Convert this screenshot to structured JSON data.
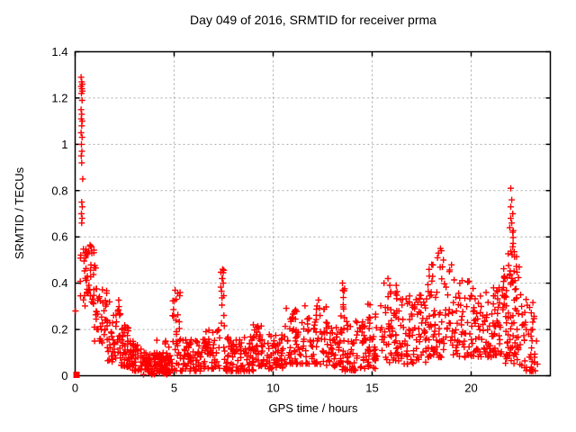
{
  "chart_data": {
    "type": "scatter",
    "title": "Day 049 of 2016, SRMTID for receiver prma",
    "xlabel": "GPS time / hours",
    "ylabel": "SRMTID / TECUs",
    "xlim": [
      0,
      24
    ],
    "ylim": [
      0,
      1.4
    ],
    "xticks": [
      {
        "v": 0,
        "label": "0"
      },
      {
        "v": 5,
        "label": "5"
      },
      {
        "v": 10,
        "label": "10"
      },
      {
        "v": 15,
        "label": "15"
      },
      {
        "v": 20,
        "label": "20"
      }
    ],
    "yticks": [
      {
        "v": 0,
        "label": "0"
      },
      {
        "v": 0.2,
        "label": "0.2"
      },
      {
        "v": 0.4,
        "label": "0.4"
      },
      {
        "v": 0.6,
        "label": "0.6"
      },
      {
        "v": 0.8,
        "label": "0.8"
      },
      {
        "v": 1.0,
        "label": "1"
      },
      {
        "v": 1.2,
        "label": "1.2"
      },
      {
        "v": 1.4,
        "label": "1.4"
      }
    ],
    "grid": true,
    "legend": "none",
    "marker": {
      "shape": "plus",
      "color": "#ff0000",
      "size": 7
    },
    "colors": {
      "fg": "#000000",
      "grid": "#aaaaaa",
      "bg": "#ffffff"
    },
    "seed": 49,
    "origin_point": [
      0.07,
      0.004
    ],
    "feature_points": [
      [
        0.02,
        0.28
      ],
      [
        0.3,
        1.29
      ],
      [
        0.33,
        1.27
      ],
      [
        0.36,
        1.26
      ],
      [
        0.3,
        1.25
      ],
      [
        0.34,
        1.24
      ],
      [
        0.37,
        1.23
      ],
      [
        0.32,
        1.22
      ],
      [
        0.35,
        1.19
      ],
      [
        0.3,
        1.15
      ],
      [
        0.33,
        1.13
      ],
      [
        0.31,
        1.11
      ],
      [
        0.36,
        1.1
      ],
      [
        0.33,
        1.08
      ],
      [
        0.3,
        1.05
      ],
      [
        0.35,
        1.03
      ],
      [
        0.32,
        1.0
      ],
      [
        0.34,
        0.97
      ],
      [
        0.31,
        0.95
      ],
      [
        0.33,
        0.92
      ],
      [
        0.38,
        0.85
      ],
      [
        0.33,
        0.75
      ],
      [
        0.36,
        0.73
      ],
      [
        0.32,
        0.7
      ],
      [
        0.35,
        0.68
      ],
      [
        0.33,
        0.66
      ],
      [
        5.05,
        0.37
      ],
      [
        5.3,
        0.36
      ],
      [
        5.1,
        0.33
      ],
      [
        7.45,
        0.46
      ],
      [
        7.42,
        0.42
      ],
      [
        7.48,
        0.4
      ],
      [
        9.0,
        0.22
      ],
      [
        11.1,
        0.28
      ],
      [
        11.13,
        0.285
      ],
      [
        11.07,
        0.275
      ],
      [
        13.5,
        0.4
      ],
      [
        13.52,
        0.37
      ],
      [
        15.8,
        0.42
      ],
      [
        15.6,
        0.4
      ],
      [
        18.45,
        0.55
      ],
      [
        18.5,
        0.54
      ],
      [
        18.35,
        0.53
      ],
      [
        18.3,
        0.51
      ],
      [
        18.6,
        0.5
      ],
      [
        18.55,
        0.47
      ],
      [
        18.9,
        0.45
      ],
      [
        22.0,
        0.81
      ],
      [
        22.05,
        0.76
      ],
      [
        22.0,
        0.73
      ],
      [
        22.1,
        0.7
      ],
      [
        22.0,
        0.68
      ],
      [
        22.05,
        0.66
      ],
      [
        21.95,
        0.64
      ],
      [
        22.1,
        0.62
      ],
      [
        22.5,
        0.35
      ],
      [
        22.55,
        0.3
      ],
      [
        22.7,
        0.22
      ],
      [
        22.9,
        0.18
      ],
      [
        23.05,
        0.12
      ],
      [
        23.1,
        0.2
      ],
      [
        23.2,
        0.08
      ],
      [
        23.3,
        0.15
      ],
      [
        23.35,
        0.05
      ]
    ],
    "clusters": [
      {
        "x0": 0.25,
        "x1": 1.05,
        "ylo": 0.3,
        "yhi": 0.57,
        "n": 48,
        "bias": 1.0
      },
      {
        "x0": 0.9,
        "x1": 1.6,
        "ylo": 0.14,
        "yhi": 0.38,
        "n": 40,
        "bias": 1.2
      },
      {
        "x0": 1.6,
        "x1": 2.3,
        "ylo": 0.06,
        "yhi": 0.34,
        "n": 48,
        "bias": 1.4
      },
      {
        "x0": 2.3,
        "x1": 2.7,
        "ylo": 0.04,
        "yhi": 0.22,
        "n": 32,
        "bias": 1.3
      },
      {
        "x0": 2.6,
        "x1": 3.4,
        "ylo": 0.02,
        "yhi": 0.15,
        "n": 48,
        "bias": 1.3
      },
      {
        "x0": 3.3,
        "x1": 4.9,
        "ylo": 0.005,
        "yhi": 0.1,
        "n": 115,
        "bias": 1.2
      },
      {
        "x0": 3.9,
        "x1": 4.9,
        "ylo": 0.07,
        "yhi": 0.17,
        "n": 15,
        "bias": 1.3
      },
      {
        "x0": 4.9,
        "x1": 5.45,
        "ylo": 0.12,
        "yhi": 0.37,
        "n": 16,
        "bias": 1.1
      },
      {
        "x0": 5.0,
        "x1": 6.5,
        "ylo": 0.02,
        "yhi": 0.16,
        "n": 85,
        "bias": 1.4
      },
      {
        "x0": 6.5,
        "x1": 7.3,
        "ylo": 0.03,
        "yhi": 0.2,
        "n": 50,
        "bias": 1.5
      },
      {
        "x0": 7.35,
        "x1": 7.55,
        "ylo": 0.2,
        "yhi": 0.46,
        "n": 12,
        "bias": 1.0
      },
      {
        "x0": 7.5,
        "x1": 9.0,
        "ylo": 0.02,
        "yhi": 0.17,
        "n": 95,
        "bias": 1.5
      },
      {
        "x0": 9.0,
        "x1": 9.6,
        "ylo": 0.04,
        "yhi": 0.22,
        "n": 40,
        "bias": 1.4
      },
      {
        "x0": 9.6,
        "x1": 10.6,
        "ylo": 0.03,
        "yhi": 0.18,
        "n": 60,
        "bias": 1.4
      },
      {
        "x0": 10.6,
        "x1": 11.6,
        "ylo": 0.05,
        "yhi": 0.3,
        "n": 55,
        "bias": 1.5
      },
      {
        "x0": 11.6,
        "x1": 12.7,
        "ylo": 0.05,
        "yhi": 0.33,
        "n": 62,
        "bias": 1.5
      },
      {
        "x0": 12.7,
        "x1": 13.45,
        "ylo": 0.04,
        "yhi": 0.26,
        "n": 48,
        "bias": 1.5
      },
      {
        "x0": 13.45,
        "x1": 13.62,
        "ylo": 0.22,
        "yhi": 0.4,
        "n": 8,
        "bias": 1.0
      },
      {
        "x0": 13.45,
        "x1": 14.6,
        "ylo": 0.02,
        "yhi": 0.24,
        "n": 62,
        "bias": 1.6
      },
      {
        "x0": 14.6,
        "x1": 15.3,
        "ylo": 0.03,
        "yhi": 0.32,
        "n": 48,
        "bias": 1.5
      },
      {
        "x0": 15.3,
        "x1": 16.6,
        "ylo": 0.05,
        "yhi": 0.42,
        "n": 72,
        "bias": 1.5
      },
      {
        "x0": 16.6,
        "x1": 17.8,
        "ylo": 0.05,
        "yhi": 0.36,
        "n": 72,
        "bias": 1.4
      },
      {
        "x0": 17.8,
        "x1": 19.1,
        "ylo": 0.08,
        "yhi": 0.5,
        "n": 78,
        "bias": 1.5
      },
      {
        "x0": 19.1,
        "x1": 20.1,
        "ylo": 0.08,
        "yhi": 0.42,
        "n": 55,
        "bias": 1.4
      },
      {
        "x0": 20.1,
        "x1": 21.6,
        "ylo": 0.08,
        "yhi": 0.4,
        "n": 92,
        "bias": 1.3
      },
      {
        "x0": 21.6,
        "x1": 22.45,
        "ylo": 0.05,
        "yhi": 0.48,
        "n": 82,
        "bias": 1.2
      },
      {
        "x0": 21.85,
        "x1": 22.3,
        "ylo": 0.5,
        "yhi": 0.63,
        "n": 10,
        "bias": 1.0
      },
      {
        "x0": 22.45,
        "x1": 23.25,
        "ylo": 0.02,
        "yhi": 0.33,
        "n": 42,
        "bias": 1.5
      }
    ]
  }
}
